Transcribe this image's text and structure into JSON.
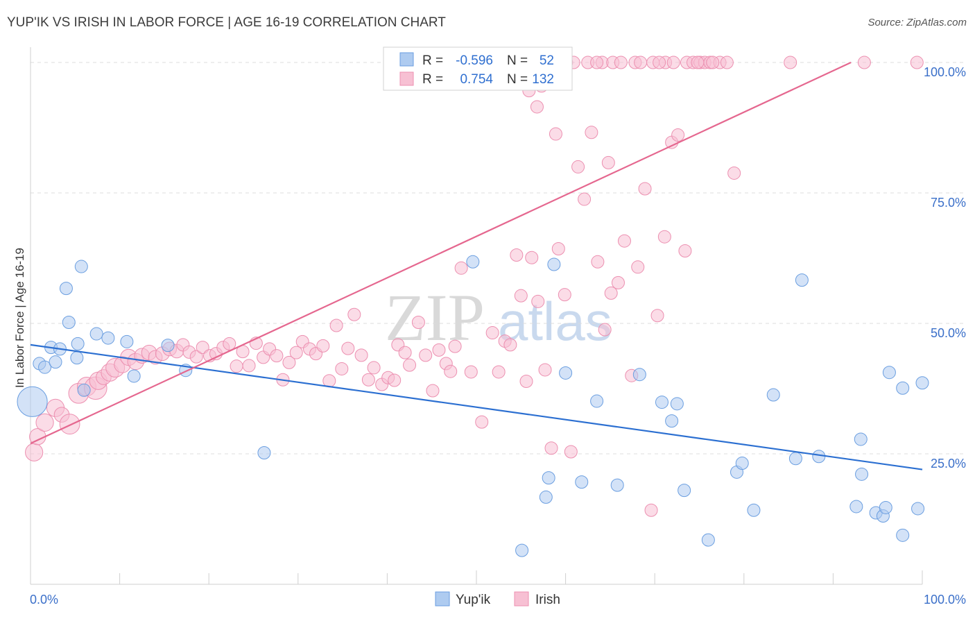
{
  "title": "YUP'IK VS IRISH IN LABOR FORCE | AGE 16-19 CORRELATION CHART",
  "source": "Source: ZipAtlas.com",
  "watermark": {
    "zip": "ZIP",
    "atlas": "atlas"
  },
  "colors": {
    "blue_fill": "#aecbf0",
    "blue_stroke": "#6a9ee0",
    "blue_line": "#2b6fd1",
    "pink_fill": "#f7c0d3",
    "pink_stroke": "#ec8fb0",
    "pink_line": "#e5678f",
    "tick_text": "#3a6fc9",
    "grid": "#dcdcdc"
  },
  "legend": {
    "rows": [
      {
        "r_label": "R =",
        "r_value": "-0.596",
        "n_label": "N =",
        "n_value": "52"
      },
      {
        "r_label": "R =",
        "r_value": "0.754",
        "n_label": "N =",
        "n_value": "132"
      }
    ]
  },
  "bottom_legend": {
    "yupik": "Yup'ik",
    "irish": "Irish"
  },
  "chart_data": {
    "type": "scatter",
    "xlabel_left": "0.0%",
    "xlabel_right": "100.0%",
    "ylabel": "In Labor Force | Age 16-19",
    "xlim": [
      0,
      100
    ],
    "ylim": [
      0,
      102
    ],
    "yticks": [
      {
        "value": 25,
        "label": "25.0%"
      },
      {
        "value": 50,
        "label": "50.0%"
      },
      {
        "value": 75,
        "label": "75.0%"
      },
      {
        "value": 100,
        "label": "100.0%"
      }
    ],
    "series": [
      {
        "name": "Yup'ik",
        "color": "blue",
        "trend": {
          "x0": 0,
          "y0": 45.9,
          "x1": 100,
          "y1": 22.0
        },
        "points": [
          [
            0.2,
            35,
            2.4
          ],
          [
            1,
            42.3,
            1
          ],
          [
            1.6,
            41.6,
            1
          ],
          [
            2.3,
            45.4,
            1
          ],
          [
            2.8,
            42.6,
            1
          ],
          [
            3.3,
            45.1,
            1
          ],
          [
            4,
            56.7,
            1
          ],
          [
            4.3,
            50.2,
            1
          ],
          [
            5.2,
            43.4,
            1
          ],
          [
            5.3,
            46.1,
            1
          ],
          [
            6,
            37.2,
            1
          ],
          [
            5.7,
            60.9,
            1
          ],
          [
            7.4,
            48,
            1
          ],
          [
            8.7,
            47.2,
            1
          ],
          [
            10.8,
            46.5,
            1
          ],
          [
            11.6,
            39.9,
            1
          ],
          [
            15.4,
            45.8,
            1
          ],
          [
            26.2,
            25.2,
            1
          ],
          [
            49.6,
            61.8,
            1
          ],
          [
            58.7,
            61.3,
            1
          ],
          [
            60,
            40.5,
            1
          ],
          [
            57.8,
            16.7,
            1
          ],
          [
            58.1,
            20.4,
            1
          ],
          [
            61.8,
            19.6,
            1
          ],
          [
            55.1,
            6.5,
            1
          ],
          [
            63.5,
            35.1,
            1
          ],
          [
            65.8,
            19,
            1
          ],
          [
            68.3,
            40.2,
            1
          ],
          [
            70.8,
            34.9,
            1
          ],
          [
            71.9,
            31.3,
            1
          ],
          [
            72.5,
            34.6,
            1
          ],
          [
            73.3,
            18,
            1
          ],
          [
            76,
            8.5,
            1
          ],
          [
            79.2,
            21.5,
            1
          ],
          [
            79.8,
            23.2,
            1
          ],
          [
            81.1,
            14.2,
            1
          ],
          [
            83.3,
            36.3,
            1
          ],
          [
            85.8,
            24.1,
            1
          ],
          [
            86.5,
            58.3,
            1
          ],
          [
            88.4,
            24.5,
            1
          ],
          [
            92.6,
            14.9,
            1
          ],
          [
            93.1,
            27.8,
            1
          ],
          [
            93.2,
            21.1,
            1
          ],
          [
            94.8,
            13.7,
            1
          ],
          [
            95.6,
            13.1,
            1
          ],
          [
            95.9,
            14.7,
            1
          ],
          [
            96.3,
            40.6,
            1
          ],
          [
            97.8,
            37.6,
            1
          ],
          [
            97.8,
            9.4,
            1
          ],
          [
            99.5,
            14.5,
            1
          ],
          [
            100,
            38.6,
            1
          ],
          [
            17.4,
            41,
            1
          ]
        ]
      },
      {
        "name": "Irish",
        "color": "pink",
        "trend": {
          "x0": 0,
          "y0": 27.0,
          "x1": 92,
          "y1": 100.0
        },
        "points": [
          [
            0.4,
            25.3,
            1.4
          ],
          [
            0.8,
            28.3,
            1.3
          ],
          [
            1.6,
            31,
            1.4
          ],
          [
            2.8,
            33.8,
            1.4
          ],
          [
            3.5,
            32.5,
            1.2
          ],
          [
            4.4,
            30.7,
            1.6
          ],
          [
            5.4,
            36.6,
            1.6
          ],
          [
            6.3,
            37.9,
            1.5
          ],
          [
            7.3,
            37.6,
            1.8
          ],
          [
            7.6,
            39,
            1.4
          ],
          [
            8.2,
            39.7,
            1.2
          ],
          [
            8.9,
            40.6,
            1.4
          ],
          [
            9.5,
            41.5,
            1.5
          ],
          [
            10.3,
            42.1,
            1.3
          ],
          [
            11,
            43.5,
            1.3
          ],
          [
            11.8,
            42.7,
            1.3
          ],
          [
            12.5,
            43.8,
            1.2
          ],
          [
            13.3,
            44.4,
            1.2
          ],
          [
            14,
            43.5,
            1.1
          ],
          [
            14.8,
            44.2,
            1.1
          ],
          [
            15.6,
            45.1,
            1.1
          ],
          [
            16.4,
            44.7,
            1.1
          ],
          [
            17.1,
            45.9,
            1
          ],
          [
            17.8,
            44.5,
            1
          ],
          [
            18.6,
            43.6,
            1
          ],
          [
            19.3,
            45.4,
            1
          ],
          [
            20.1,
            43.8,
            1
          ],
          [
            20.8,
            44.2,
            1
          ],
          [
            21.6,
            45.4,
            1
          ],
          [
            22.3,
            46.1,
            1
          ],
          [
            23.1,
            41.8,
            1
          ],
          [
            23.8,
            44.6,
            1
          ],
          [
            24.5,
            41.9,
            1
          ],
          [
            25.3,
            46.2,
            1
          ],
          [
            26.1,
            43.5,
            1
          ],
          [
            26.8,
            45.1,
            1
          ],
          [
            27.6,
            43.8,
            1
          ],
          [
            28.3,
            39.2,
            1
          ],
          [
            29,
            42.5,
            1
          ],
          [
            29.8,
            44.4,
            1
          ],
          [
            30.5,
            46.5,
            1
          ],
          [
            31.3,
            45.1,
            1
          ],
          [
            32,
            44.2,
            1
          ],
          [
            32.8,
            45.7,
            1
          ],
          [
            33.5,
            39,
            1
          ],
          [
            34.3,
            49.6,
            1
          ],
          [
            34.9,
            41.3,
            1
          ],
          [
            35.6,
            45.2,
            1
          ],
          [
            36.3,
            51.7,
            1
          ],
          [
            37.1,
            43.9,
            1
          ],
          [
            37.9,
            39.2,
            1
          ],
          [
            38.5,
            41.5,
            1
          ],
          [
            39.4,
            38.3,
            1
          ],
          [
            40.1,
            39.6,
            1
          ],
          [
            40.8,
            39.1,
            1
          ],
          [
            41.2,
            45.9,
            1
          ],
          [
            42,
            44.4,
            1
          ],
          [
            42.5,
            42,
            1
          ],
          [
            43.5,
            50.2,
            1
          ],
          [
            44.3,
            43.9,
            1
          ],
          [
            45.1,
            37.1,
            1
          ],
          [
            45.8,
            44.9,
            1
          ],
          [
            46.6,
            42.3,
            1
          ],
          [
            47.1,
            40.8,
            1
          ],
          [
            47.6,
            45.6,
            1
          ],
          [
            48.3,
            60.6,
            1
          ],
          [
            49.4,
            40.7,
            1
          ],
          [
            50.6,
            31.1,
            1
          ],
          [
            51.8,
            48.2,
            1
          ],
          [
            52.5,
            40.7,
            1
          ],
          [
            53.2,
            46.6,
            1
          ],
          [
            53.8,
            45.9,
            1
          ],
          [
            54.5,
            63.1,
            1
          ],
          [
            55,
            55.3,
            1
          ],
          [
            55.6,
            38.9,
            1
          ],
          [
            56.2,
            62.6,
            1
          ],
          [
            56.9,
            54.2,
            1
          ],
          [
            57.7,
            41.1,
            1
          ],
          [
            58.4,
            26.1,
            1
          ],
          [
            59.2,
            64.3,
            1
          ],
          [
            59.9,
            55.5,
            1
          ],
          [
            60.6,
            25.4,
            1
          ],
          [
            61.4,
            80,
            1
          ],
          [
            62.1,
            73.8,
            1
          ],
          [
            62.9,
            86.6,
            1
          ],
          [
            63.6,
            61.8,
            1
          ],
          [
            64.4,
            48.8,
            1
          ],
          [
            65.1,
            55.8,
            1
          ],
          [
            65.9,
            57.8,
            1
          ],
          [
            66.6,
            65.8,
            1
          ],
          [
            67.4,
            40,
            1
          ],
          [
            68.1,
            60.8,
            1
          ],
          [
            68.9,
            75.8,
            1
          ],
          [
            69.6,
            14.2,
            1
          ],
          [
            70.3,
            51.5,
            1
          ],
          [
            71.1,
            66.6,
            1
          ],
          [
            71.9,
            84.7,
            1
          ],
          [
            72.6,
            86.1,
            1
          ],
          [
            73.4,
            63.9,
            1
          ],
          [
            56.8,
            91.5,
            1
          ],
          [
            57.3,
            95.5,
            1
          ],
          [
            58.2,
            100,
            1
          ],
          [
            59.5,
            100,
            1
          ],
          [
            60.1,
            100,
            1
          ],
          [
            62.5,
            100,
            1
          ],
          [
            64.1,
            100,
            1
          ],
          [
            65.3,
            100,
            1
          ],
          [
            66.2,
            100,
            1
          ],
          [
            67.8,
            100,
            1
          ],
          [
            68.4,
            100,
            1
          ],
          [
            71.2,
            100,
            1
          ],
          [
            72.1,
            100,
            1
          ],
          [
            73.6,
            100,
            1
          ],
          [
            74.3,
            100,
            1
          ],
          [
            75.1,
            100,
            1
          ],
          [
            75.6,
            100,
            1
          ],
          [
            76.2,
            100,
            1
          ],
          [
            77.3,
            100,
            1
          ],
          [
            78.1,
            100,
            1
          ],
          [
            78.9,
            78.8,
            1
          ],
          [
            85.2,
            100,
            1
          ],
          [
            93.5,
            100,
            1
          ],
          [
            99.4,
            100,
            1
          ],
          [
            60.9,
            100,
            1
          ],
          [
            63.5,
            100,
            1
          ],
          [
            69.8,
            100,
            1
          ],
          [
            70.5,
            100,
            1
          ],
          [
            74.8,
            100,
            1
          ],
          [
            76.5,
            100,
            1
          ],
          [
            55.9,
            94.6,
            1
          ],
          [
            58.9,
            86.3,
            1
          ],
          [
            64.8,
            80.8,
            1
          ]
        ]
      }
    ]
  }
}
